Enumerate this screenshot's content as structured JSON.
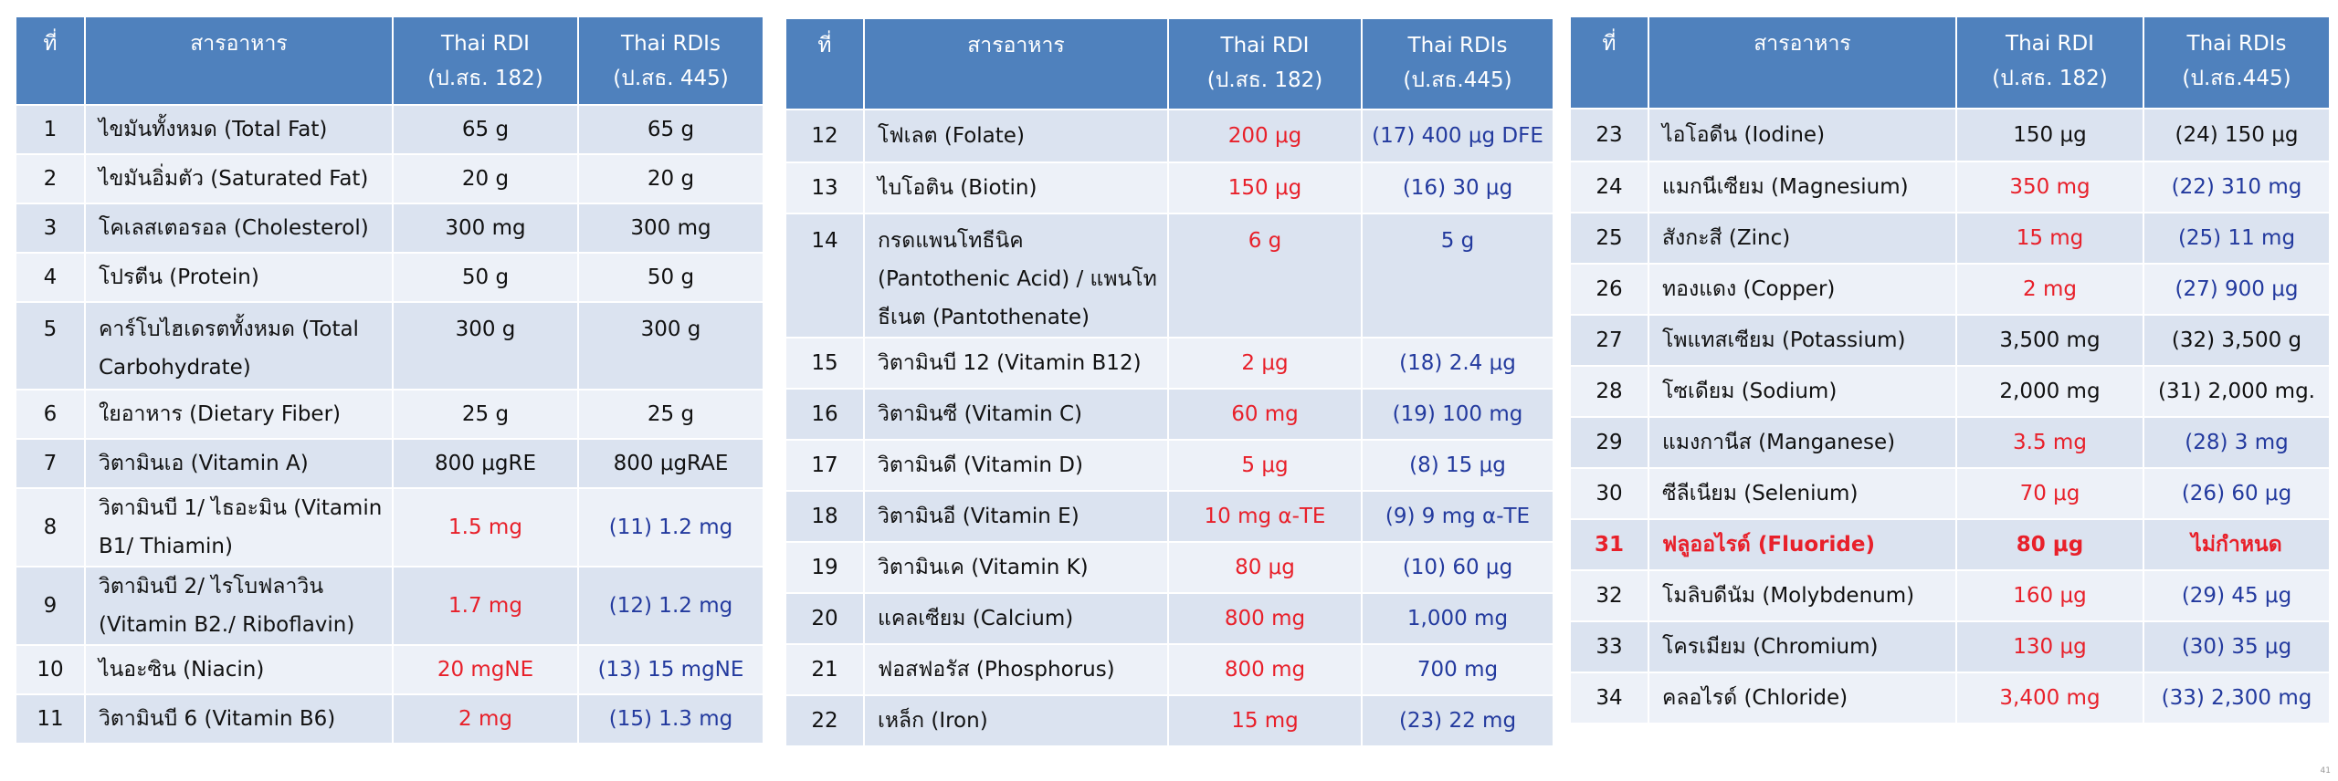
{
  "headers": {
    "no": "ที่",
    "nutrient": "สารอาหาร",
    "rdi": "Thai RDI\n(ป.สธ. 182)",
    "rdis_p1": "Thai RDIs\n(ป.สธ. 445)",
    "rdis_p2": "Thai RDIs\n(ป.สธ.445)"
  },
  "table1": [
    {
      "no": "1",
      "name": "ไขมันทั้งหมด (Total Fat)",
      "rdi": "65 g",
      "rdis": "65 g",
      "rdi_color": "blk",
      "rdis_color": "blk"
    },
    {
      "no": "2",
      "name": "ไขมันอิ่มตัว (Saturated Fat)",
      "rdi": "20 g",
      "rdis": "20 g",
      "rdi_color": "blk",
      "rdis_color": "blk"
    },
    {
      "no": "3",
      "name": "โคเลสเตอรอล (Cholesterol)",
      "rdi": "300 mg",
      "rdis": "300 mg",
      "rdi_color": "blk",
      "rdis_color": "blk"
    },
    {
      "no": "4",
      "name": "โปรตีน (Protein)",
      "rdi": "50 g",
      "rdis": "50 g",
      "rdi_color": "blk",
      "rdis_color": "blk"
    },
    {
      "no": "5",
      "name": "คาร์โบไฮเดรตทั้งหมด (Total Carbohydrate)",
      "rdi": "300 g",
      "rdis": "300 g",
      "rdi_color": "blk",
      "rdis_color": "blk",
      "top": true
    },
    {
      "no": "6",
      "name": "ใยอาหาร (Dietary Fiber)",
      "rdi": "25 g",
      "rdis": "25 g",
      "rdi_color": "blk",
      "rdis_color": "blk"
    },
    {
      "no": "7",
      "name": "วิตามินเอ (Vitamin A)",
      "rdi": "800 μgRE",
      "rdis": "800 μgRAE",
      "rdi_color": "blk",
      "rdis_color": "blk"
    },
    {
      "no": "8",
      "name": "วิตามินบี 1/ ไธอะมิน (Vitamin B1/ Thiamin)",
      "rdi": "1.5 mg",
      "rdis": "(11)  1.2 mg",
      "rdi_color": "red",
      "rdis_color": "blue"
    },
    {
      "no": "9",
      "name": "วิตามินบี 2/ ไรโบฟลาวิน (Vitamin B2./ Riboflavin)",
      "rdi": "1.7 mg",
      "rdis": "(12)  1.2 mg",
      "rdi_color": "red",
      "rdis_color": "blue"
    },
    {
      "no": "10",
      "name": "ไนอะซิน (Niacin)",
      "rdi": "20 mgNE",
      "rdis": "(13)  15 mgNE",
      "rdi_color": "red",
      "rdis_color": "blue"
    },
    {
      "no": "11",
      "name": "วิตามินบี 6 (Vitamin B6)",
      "rdi": "2 mg",
      "rdis": "(15)  1.3 mg",
      "rdi_color": "red",
      "rdis_color": "blue"
    }
  ],
  "table2": [
    {
      "no": "12",
      "name": "โฟเลต (Folate)",
      "rdi": "200 μg",
      "rdis": "(17) 400 μg DFE",
      "rdi_color": "red",
      "rdis_color": "blue"
    },
    {
      "no": "13",
      "name": "ไบโอติน (Biotin)",
      "rdi": "150 μg",
      "rdis": "(16)  30 μg",
      "rdi_color": "red",
      "rdis_color": "blue"
    },
    {
      "no": "14",
      "name": "กรดแพนโทธีนิค (Pantothenic Acid) / แพนโทธีเนต (Pantothenate)",
      "rdi": "6 g",
      "rdis": "5 g",
      "rdi_color": "red",
      "rdis_color": "blue",
      "top": true
    },
    {
      "no": "15",
      "name": "วิตามินบี 12 (Vitamin B12)",
      "rdi": "2 μg",
      "rdis": "(18) 2.4 μg",
      "rdi_color": "red",
      "rdis_color": "blue"
    },
    {
      "no": "16",
      "name": "วิตามินซี (Vitamin C)",
      "rdi": "60 mg",
      "rdis": "(19)  100 mg",
      "rdi_color": "red",
      "rdis_color": "blue"
    },
    {
      "no": "17",
      "name": "วิตามินดี (Vitamin D)",
      "rdi": "5 μg",
      "rdis": "(8)  15 μg",
      "rdi_color": "red",
      "rdis_color": "blue"
    },
    {
      "no": "18",
      "name": "วิตามินอี (Vitamin E)",
      "rdi": "10 mg α-TE",
      "rdis": "(9)  9 mg α-TE",
      "rdi_color": "red",
      "rdis_color": "blue"
    },
    {
      "no": "19",
      "name": "วิตามินเค (Vitamin K)",
      "rdi": "80 μg",
      "rdis": "(10)  60 μg",
      "rdi_color": "red",
      "rdis_color": "blue"
    },
    {
      "no": "20",
      "name": "แคลเซียม (Calcium)",
      "rdi": "800 mg",
      "rdis": "1,000 mg",
      "rdi_color": "red",
      "rdis_color": "blue"
    },
    {
      "no": "21",
      "name": "ฟอสฟอรัส (Phosphorus)",
      "rdi": "800 mg",
      "rdis": "700 mg",
      "rdi_color": "red",
      "rdis_color": "blue"
    },
    {
      "no": "22",
      "name": "เหล็ก (Iron)",
      "rdi": "15 mg",
      "rdis": "(23)  22 mg",
      "rdi_color": "red",
      "rdis_color": "blue"
    }
  ],
  "table3": [
    {
      "no": "23",
      "name": "ไอโอดีน (Iodine)",
      "rdi": "150 μg",
      "rdis": "(24)  150 μg",
      "rdi_color": "blk",
      "rdis_color": "blk"
    },
    {
      "no": "24",
      "name": "แมกนีเซียม (Magnesium)",
      "rdi": "350 mg",
      "rdis": "(22)  310 mg",
      "rdi_color": "red",
      "rdis_color": "blue"
    },
    {
      "no": "25",
      "name": "สังกะสี (Zinc)",
      "rdi": "15 mg",
      "rdis": "(25)  11 mg",
      "rdi_color": "red",
      "rdis_color": "blue"
    },
    {
      "no": "26",
      "name": "ทองแดง (Copper)",
      "rdi": "2 mg",
      "rdis": "(27)  900 μg",
      "rdi_color": "red",
      "rdis_color": "blue"
    },
    {
      "no": "27",
      "name": "โพแทสเซียม (Potassium)",
      "rdi": "3,500 mg",
      "rdis": "(32)  3,500 g",
      "rdi_color": "blk",
      "rdis_color": "blk"
    },
    {
      "no": "28",
      "name": "โซเดียม (Sodium)",
      "rdi": "2,000 mg",
      "rdis": "(31)  2,000 mg.",
      "rdi_color": "blk",
      "rdis_color": "blk"
    },
    {
      "no": "29",
      "name": "แมงกานีส (Manganese)",
      "rdi": "3.5 mg",
      "rdis": "(28)  3 mg",
      "rdi_color": "red",
      "rdis_color": "blue"
    },
    {
      "no": "30",
      "name": "ซีลีเนียม (Selenium)",
      "rdi": "70 μg",
      "rdis": "(26)  60 μg",
      "rdi_color": "red",
      "rdis_color": "blue"
    },
    {
      "no": "31",
      "name": "ฟลูออไรด์ (Fluoride)",
      "rdi": "80 μg",
      "rdis": "ไม่กำหนด",
      "rdi_color": "red",
      "rdis_color": "red",
      "highlight": true
    },
    {
      "no": "32",
      "name": "โมลิบดีนัม (Molybdenum)",
      "rdi": "160 μg",
      "rdis": "(29)  45 μg",
      "rdi_color": "red",
      "rdis_color": "blue"
    },
    {
      "no": "33",
      "name": "โครเมียม (Chromium)",
      "rdi": "130 μg",
      "rdis": "(30) 35 μg",
      "rdi_color": "red",
      "rdis_color": "blue"
    },
    {
      "no": "34",
      "name": "คลอไรด์ (Chloride)",
      "rdi": "3,400 mg",
      "rdis": "(33)  2,300 mg",
      "rdi_color": "red",
      "rdis_color": "blue"
    }
  ],
  "page_number": "41"
}
